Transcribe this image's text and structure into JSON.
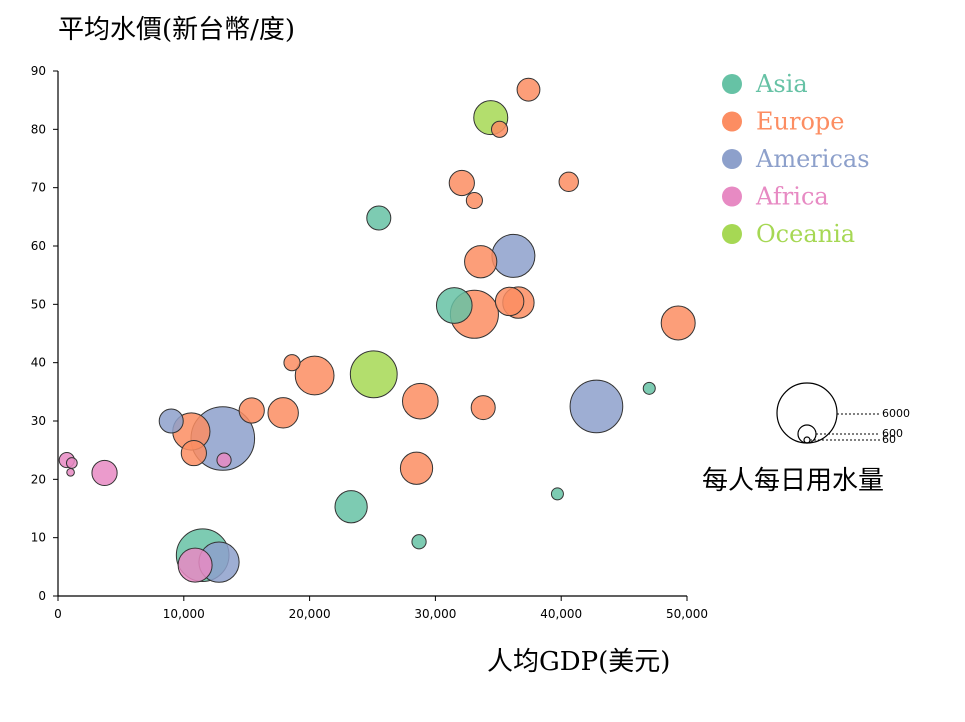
{
  "chart_data": {
    "type": "scatter",
    "ylabel": "平均水價(新台幣/度)",
    "xlabel": "人均GDP(美元)",
    "xlim": [
      0,
      50000
    ],
    "ylim": [
      0,
      90
    ],
    "x_ticks": [
      0,
      10000,
      20000,
      30000,
      40000,
      50000
    ],
    "x_tick_labels": [
      "0",
      "10,000",
      "20,000",
      "30,000",
      "40,000",
      "50,000"
    ],
    "y_ticks": [
      0,
      10,
      20,
      30,
      40,
      50,
      60,
      70,
      80,
      90
    ],
    "y_tick_labels": [
      "0",
      "10",
      "20",
      "30",
      "40",
      "50",
      "60",
      "70",
      "80",
      "90"
    ],
    "legend": {
      "placement": "top-right",
      "entries": [
        {
          "name": "Asia",
          "color": "#66c2a5"
        },
        {
          "name": "Europe",
          "color": "#fc8d62"
        },
        {
          "name": "Americas",
          "color": "#8da0cb"
        },
        {
          "name": "Africa",
          "color": "#e78ac3"
        },
        {
          "name": "Oceania",
          "color": "#a6d854"
        }
      ]
    },
    "size_legend": {
      "title": "每人每日用水量",
      "values": [
        6000,
        600,
        60
      ],
      "labels": [
        "6000",
        "600",
        "60"
      ]
    },
    "series": [
      {
        "region": "Asia",
        "points": [
          {
            "x": 11500,
            "y": 7,
            "size": 4800
          },
          {
            "x": 25500,
            "y": 64.8,
            "size": 1000
          },
          {
            "x": 31500,
            "y": 49.8,
            "size": 2200
          },
          {
            "x": 23300,
            "y": 15.3,
            "size": 1800
          },
          {
            "x": 28700,
            "y": 9.3,
            "size": 350
          },
          {
            "x": 47000,
            "y": 35.6,
            "size": 250
          },
          {
            "x": 39700,
            "y": 17.5,
            "size": 250
          }
        ]
      },
      {
        "region": "Europe",
        "points": [
          {
            "x": 37400,
            "y": 86.8,
            "size": 900
          },
          {
            "x": 35100,
            "y": 80,
            "size": 450
          },
          {
            "x": 32100,
            "y": 70.8,
            "size": 1100
          },
          {
            "x": 33100,
            "y": 67.8,
            "size": 450
          },
          {
            "x": 40600,
            "y": 71,
            "size": 650
          },
          {
            "x": 33600,
            "y": 57.3,
            "size": 1800
          },
          {
            "x": 35900,
            "y": 50.5,
            "size": 1400
          },
          {
            "x": 36600,
            "y": 50.3,
            "size": 1700
          },
          {
            "x": 33100,
            "y": 48.3,
            "size": 4000
          },
          {
            "x": 49300,
            "y": 46.8,
            "size": 2000
          },
          {
            "x": 18600,
            "y": 40,
            "size": 450
          },
          {
            "x": 20400,
            "y": 37.8,
            "size": 2600
          },
          {
            "x": 28800,
            "y": 33.4,
            "size": 2200
          },
          {
            "x": 33800,
            "y": 32.3,
            "size": 1000
          },
          {
            "x": 15400,
            "y": 31.8,
            "size": 1100
          },
          {
            "x": 17900,
            "y": 31.4,
            "size": 1600
          },
          {
            "x": 10600,
            "y": 28.2,
            "size": 2400
          },
          {
            "x": 10800,
            "y": 24.5,
            "size": 1100
          },
          {
            "x": 28500,
            "y": 21.9,
            "size": 1800
          }
        ]
      },
      {
        "region": "Americas",
        "points": [
          {
            "x": 36200,
            "y": 58.3,
            "size": 3200
          },
          {
            "x": 42800,
            "y": 32.5,
            "size": 4800
          },
          {
            "x": 13100,
            "y": 27,
            "size": 7000
          },
          {
            "x": 9000,
            "y": 30,
            "size": 1000
          },
          {
            "x": 12800,
            "y": 5.8,
            "size": 2800
          }
        ]
      },
      {
        "region": "Africa",
        "points": [
          {
            "x": 700,
            "y": 23.3,
            "size": 400
          },
          {
            "x": 1100,
            "y": 22.8,
            "size": 200
          },
          {
            "x": 1000,
            "y": 21.2,
            "size": 100
          },
          {
            "x": 3700,
            "y": 21.1,
            "size": 1100
          },
          {
            "x": 13200,
            "y": 23.3,
            "size": 350
          },
          {
            "x": 10900,
            "y": 5.3,
            "size": 2000
          }
        ]
      },
      {
        "region": "Oceania",
        "points": [
          {
            "x": 34400,
            "y": 82,
            "size": 2000
          },
          {
            "x": 25100,
            "y": 38,
            "size": 3800
          }
        ]
      }
    ]
  }
}
